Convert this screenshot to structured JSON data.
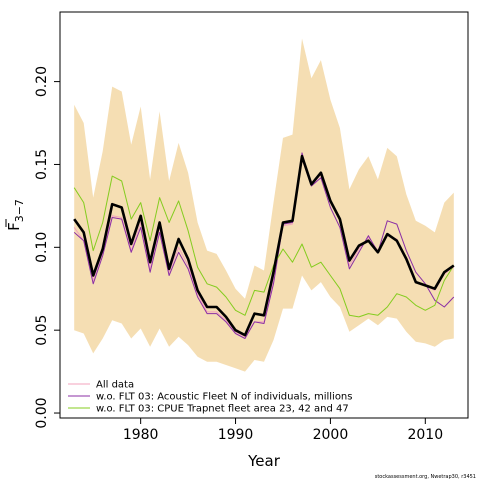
{
  "chart_data": {
    "type": "line",
    "xlabel": "Year",
    "ylabel_main": "F",
    "ylabel_sub": "3−7",
    "xlim": [
      1971.5,
      2014.5
    ],
    "ylim": [
      -0.003,
      0.242
    ],
    "xticks": [
      1980,
      1990,
      2000,
      2010
    ],
    "xtick_labels": [
      "1980",
      "1990",
      "2000",
      "2010"
    ],
    "yticks": [
      0.0,
      0.05,
      0.1,
      0.15,
      0.2
    ],
    "ytick_labels": [
      "0.00",
      "0.05",
      "0.10",
      "0.15",
      "0.20"
    ],
    "x": [
      1973,
      1974,
      1975,
      1976,
      1977,
      1978,
      1979,
      1980,
      1981,
      1982,
      1983,
      1984,
      1985,
      1986,
      1987,
      1988,
      1989,
      1990,
      1991,
      1992,
      1993,
      1994,
      1995,
      1996,
      1997,
      1998,
      1999,
      2000,
      2001,
      2002,
      2003,
      2004,
      2005,
      2006,
      2007,
      2008,
      2009,
      2010,
      2011,
      2012,
      2013
    ],
    "band": {
      "upper": [
        0.186,
        0.175,
        0.13,
        0.158,
        0.197,
        0.194,
        0.162,
        0.185,
        0.141,
        0.182,
        0.14,
        0.163,
        0.145,
        0.115,
        0.098,
        0.096,
        0.086,
        0.075,
        0.069,
        0.089,
        0.086,
        0.127,
        0.166,
        0.168,
        0.226,
        0.202,
        0.213,
        0.189,
        0.172,
        0.135,
        0.147,
        0.155,
        0.141,
        0.16,
        0.155,
        0.132,
        0.116,
        0.113,
        0.109,
        0.127,
        0.133
      ],
      "lower": [
        0.05,
        0.048,
        0.036,
        0.045,
        0.056,
        0.054,
        0.045,
        0.051,
        0.04,
        0.051,
        0.04,
        0.046,
        0.041,
        0.034,
        0.031,
        0.031,
        0.029,
        0.027,
        0.025,
        0.032,
        0.031,
        0.044,
        0.063,
        0.063,
        0.083,
        0.074,
        0.079,
        0.07,
        0.064,
        0.049,
        0.053,
        0.057,
        0.053,
        0.058,
        0.057,
        0.049,
        0.043,
        0.042,
        0.04,
        0.044,
        0.045
      ]
    },
    "series": [
      {
        "name": "All data",
        "color": "#f3a3bd",
        "values": [
          0.112,
          0.104,
          0.08,
          0.097,
          0.119,
          0.118,
          0.098,
          0.115,
          0.087,
          0.112,
          0.085,
          0.1,
          0.089,
          0.072,
          0.061,
          0.061,
          0.056,
          0.049,
          0.046,
          0.055,
          0.055,
          0.08,
          0.113,
          0.114,
          0.153,
          0.137,
          0.144,
          0.127,
          0.116,
          0.089,
          0.099,
          0.106,
          0.098,
          0.107,
          0.105,
          0.092,
          0.079,
          0.077,
          0.074,
          0.084,
          0.088
        ]
      },
      {
        "name": "w.o. FLT 03: Acoustic Fleet   N of individuals, millions",
        "color": "#8b2fa5",
        "values": [
          0.109,
          0.104,
          0.078,
          0.095,
          0.118,
          0.117,
          0.097,
          0.112,
          0.085,
          0.109,
          0.083,
          0.097,
          0.087,
          0.07,
          0.06,
          0.06,
          0.055,
          0.048,
          0.045,
          0.055,
          0.054,
          0.078,
          0.114,
          0.115,
          0.157,
          0.137,
          0.142,
          0.124,
          0.112,
          0.087,
          0.097,
          0.107,
          0.097,
          0.116,
          0.114,
          0.098,
          0.085,
          0.078,
          0.068,
          0.064,
          0.07
        ]
      },
      {
        "name": "w.o. FLT 03: CPUE Trapnet fleet area 23, 42 and 47",
        "color": "#84cc1f",
        "values": [
          0.136,
          0.127,
          0.098,
          0.115,
          0.143,
          0.14,
          0.117,
          0.127,
          0.104,
          0.13,
          0.115,
          0.128,
          0.11,
          0.088,
          0.078,
          0.076,
          0.07,
          0.062,
          0.059,
          0.074,
          0.073,
          0.089,
          0.099,
          0.091,
          0.102,
          0.088,
          0.091,
          0.083,
          0.075,
          0.059,
          0.058,
          0.06,
          0.059,
          0.064,
          0.072,
          0.07,
          0.065,
          0.062,
          0.065,
          0.08,
          0.089
        ]
      },
      {
        "name": "",
        "color": "#000000",
        "bold": true,
        "values": [
          0.117,
          0.109,
          0.083,
          0.099,
          0.126,
          0.124,
          0.102,
          0.119,
          0.091,
          0.115,
          0.087,
          0.105,
          0.093,
          0.074,
          0.064,
          0.064,
          0.058,
          0.05,
          0.047,
          0.06,
          0.059,
          0.085,
          0.115,
          0.116,
          0.155,
          0.138,
          0.145,
          0.128,
          0.117,
          0.092,
          0.101,
          0.104,
          0.097,
          0.108,
          0.104,
          0.093,
          0.079,
          0.077,
          0.075,
          0.085,
          0.089
        ]
      }
    ],
    "legend_position": "bottom-left"
  },
  "credit": "stockassessment.org, Nwetrap30, r3451"
}
